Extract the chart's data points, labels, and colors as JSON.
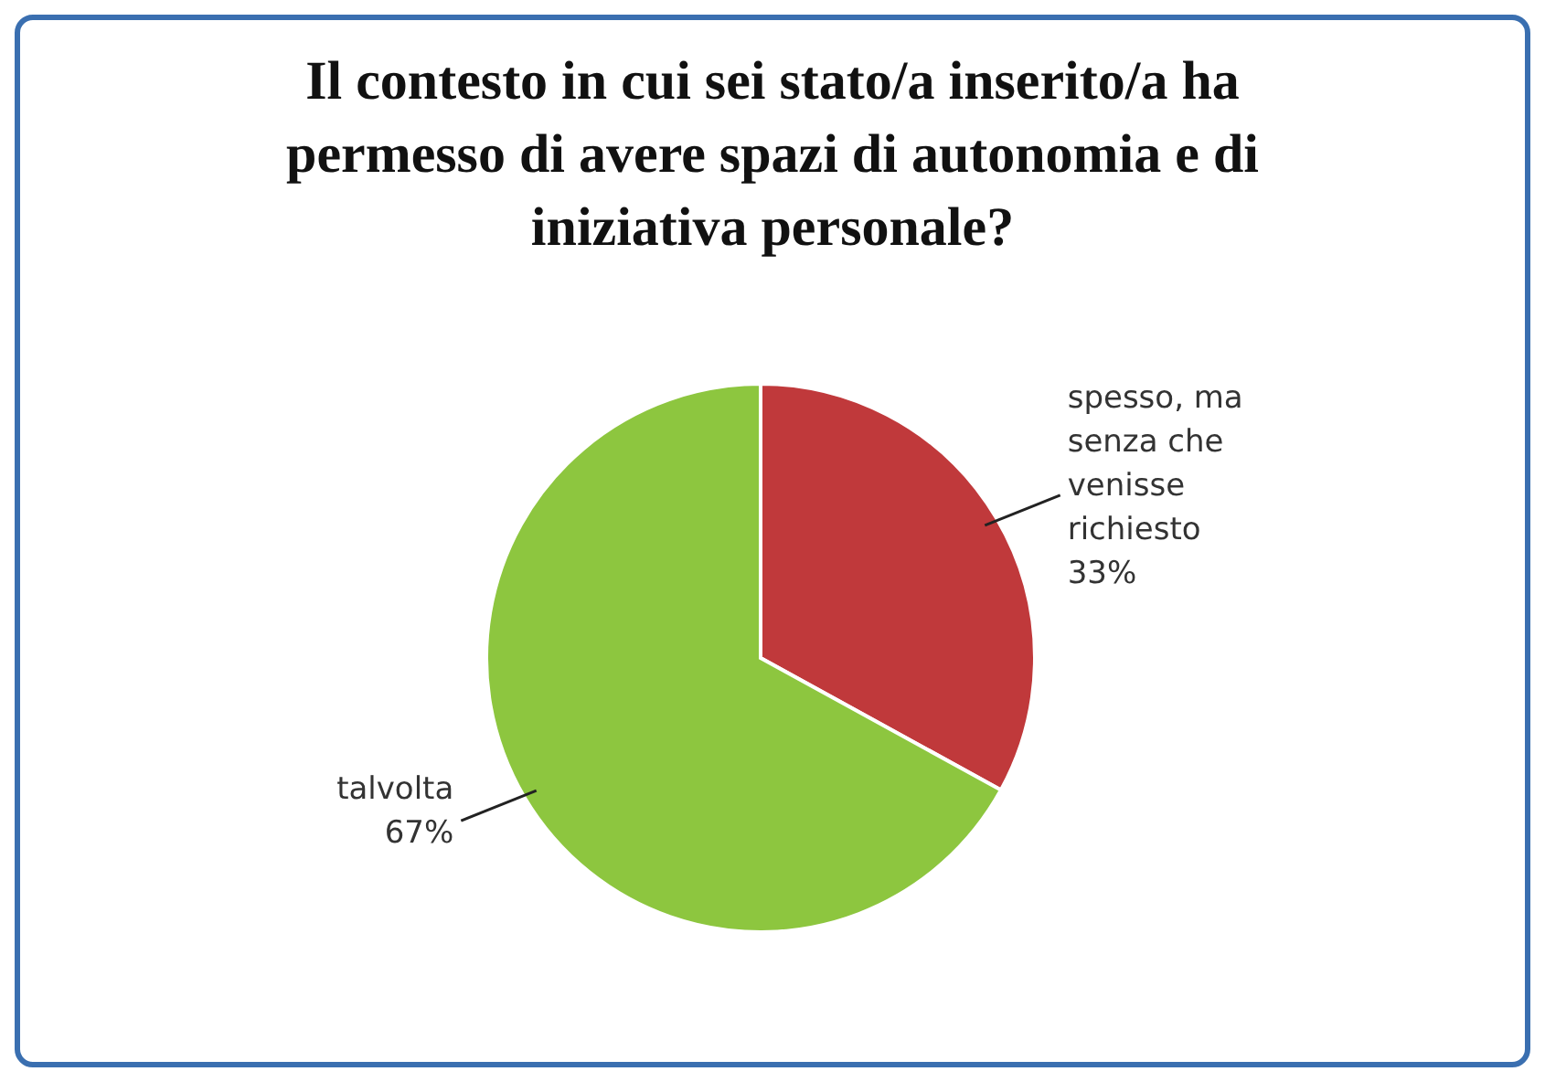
{
  "chart_data": {
    "type": "pie",
    "title": "Il contesto in cui sei stato/a inserito/a ha permesso di avere spazi di autonomia e di iniziativa personale?",
    "categories": [
      "spesso, ma senza che venisse richiesto",
      "talvolta"
    ],
    "values": [
      33,
      67
    ],
    "value_labels": [
      "33%",
      "67%"
    ],
    "colors": [
      "#c0393b",
      "#8dc63f"
    ]
  }
}
